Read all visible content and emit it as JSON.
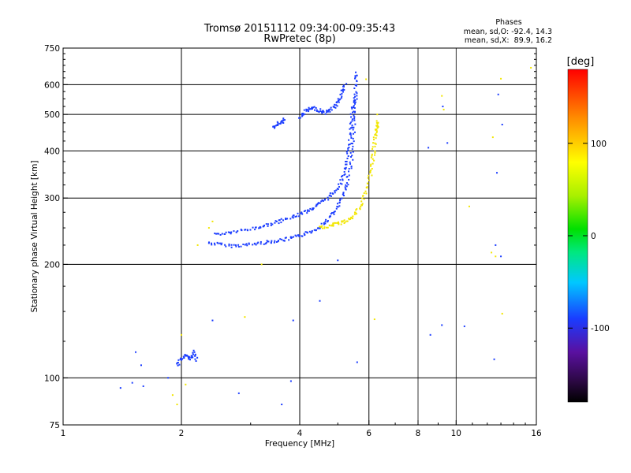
{
  "chart_data": {
    "type": "scatter",
    "title": "Tromsø 20151112 09:34:00-09:35:43",
    "subtitle": "RwPretec (8p)",
    "xlabel": "Frequency [MHz]",
    "ylabel": "Stationary phase Virtual Height [km]",
    "x_scale": "log",
    "y_scale": "log",
    "xlim": [
      1,
      16
    ],
    "ylim": [
      75,
      750
    ],
    "x_ticks": [
      1,
      2,
      4,
      6,
      8,
      10,
      16
    ],
    "x_tick_labels": [
      "1",
      "2",
      "4",
      "6",
      "8",
      "10",
      "16"
    ],
    "y_ticks": [
      75,
      100,
      200,
      300,
      400,
      500,
      600,
      750
    ],
    "y_tick_labels": [
      "75",
      "100",
      "200",
      "300",
      "400",
      "500",
      "600",
      "750"
    ],
    "grid": true,
    "phase_stats": {
      "heading": "Phases",
      "line_o": "mean, sd,O: -92.4, 14.3",
      "line_x": "mean, sd,X:  89.9, 16.2"
    },
    "colorbar": {
      "label": "deg",
      "range": [
        -180,
        180
      ],
      "ticks": [
        100,
        0,
        -100
      ],
      "tick_labels": [
        "100",
        "0",
        "-100"
      ]
    },
    "colors": {
      "o_mode": "#1a3cff",
      "x_mode": "#f2e600"
    },
    "series": [
      {
        "mode": "o",
        "phase_deg": -92,
        "traces": [
          {
            "x": [
              2.35,
              2.5,
              2.7,
              2.9,
              3.1,
              3.3,
              3.5,
              3.7,
              3.9,
              4.1,
              4.3,
              4.5,
              4.7,
              4.9,
              5.05,
              5.2,
              5.3,
              5.4,
              5.45,
              5.5,
              5.52,
              5.55,
              5.57,
              5.6
            ],
            "y": [
              228,
              226,
              224,
              225,
              227,
              229,
              231,
              233,
              236,
              240,
              245,
              252,
              262,
              275,
              290,
              310,
              335,
              370,
              410,
              460,
              510,
              560,
              610,
              650
            ]
          },
          {
            "x": [
              2.45,
              2.6,
              2.8,
              3.0,
              3.2,
              3.4,
              3.6,
              3.8,
              4.0,
              4.2,
              4.4,
              4.6,
              4.8,
              5.0,
              5.15,
              5.25,
              5.32,
              5.38,
              5.42,
              5.46,
              5.5
            ],
            "y": [
              240,
              242,
              245,
              248,
              252,
              256,
              261,
              266,
              272,
              278,
              285,
              294,
              305,
              320,
              340,
              365,
              400,
              440,
              480,
              520,
              560
            ]
          },
          {
            "x": [
              4.0,
              4.1,
              4.2,
              4.35,
              4.5,
              4.65,
              4.8,
              4.95,
              5.05,
              5.15,
              5.25
            ],
            "y": [
              490,
              505,
              515,
              520,
              512,
              505,
              515,
              530,
              550,
              580,
              600
            ]
          },
          {
            "x": [
              3.4,
              3.5,
              3.6,
              3.65
            ],
            "y": [
              460,
              470,
              478,
              485
            ]
          },
          {
            "x": [
              1.95,
              2.0,
              2.05,
              2.1,
              2.15,
              2.2
            ],
            "y": [
              108,
              112,
              115,
              112,
              117,
              110
            ]
          }
        ],
        "isolated": [
          [
            1.4,
            94
          ],
          [
            1.5,
            97
          ],
          [
            1.53,
            117
          ],
          [
            1.58,
            108
          ],
          [
            1.6,
            95
          ],
          [
            1.85,
            100
          ],
          [
            2.4,
            142
          ],
          [
            2.8,
            91
          ],
          [
            3.8,
            98
          ],
          [
            3.85,
            142
          ],
          [
            3.6,
            85
          ],
          [
            4.5,
            160
          ],
          [
            5.0,
            205
          ],
          [
            5.6,
            110
          ],
          [
            8.5,
            408
          ],
          [
            8.6,
            130
          ],
          [
            9.2,
            138
          ],
          [
            9.25,
            525
          ],
          [
            9.5,
            420
          ],
          [
            10.5,
            137
          ],
          [
            12.5,
            112
          ],
          [
            12.6,
            225
          ],
          [
            12.7,
            350
          ],
          [
            12.8,
            565
          ],
          [
            13.0,
            210
          ],
          [
            13.1,
            470
          ]
        ]
      },
      {
        "mode": "x",
        "phase_deg": 90,
        "traces": [
          {
            "x": [
              4.5,
              4.7,
              4.9,
              5.1,
              5.3,
              5.5,
              5.7,
              5.85,
              6.0,
              6.1,
              6.15,
              6.2,
              6.25,
              6.3,
              6.35
            ],
            "y": [
              250,
              252,
              255,
              258,
              262,
              270,
              285,
              305,
              330,
              360,
              390,
              420,
              445,
              465,
              480
            ]
          }
        ],
        "isolated": [
          [
            2.35,
            250
          ],
          [
            2.4,
            260
          ],
          [
            2.2,
            225
          ],
          [
            2.0,
            130
          ],
          [
            1.9,
            90
          ],
          [
            1.95,
            85
          ],
          [
            2.05,
            96
          ],
          [
            2.9,
            145
          ],
          [
            3.2,
            200
          ],
          [
            5.9,
            620
          ],
          [
            6.2,
            143
          ],
          [
            6.3,
            500
          ],
          [
            9.2,
            560
          ],
          [
            10.8,
            285
          ],
          [
            12.4,
            435
          ],
          [
            12.6,
            210
          ],
          [
            13.0,
            622
          ],
          [
            13.1,
            148
          ],
          [
            15.5,
            665
          ],
          [
            12.3,
            215
          ],
          [
            9.3,
            515
          ]
        ]
      }
    ]
  }
}
